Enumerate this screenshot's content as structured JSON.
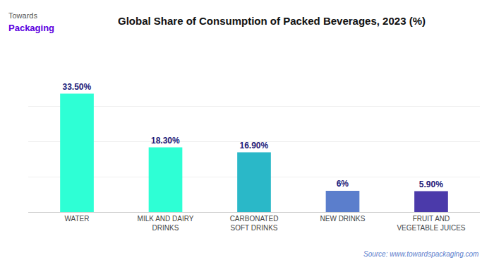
{
  "chart_data": {
    "type": "bar",
    "title": "Global Share of Consumption of Packed Beverages, 2023 (%)",
    "categories": [
      "WATER",
      "MILK AND DAIRY\nDRINKS",
      "CARBONATED\nSOFT DRINKS",
      "NEW DRINKS",
      "FRUIT AND\nVEGETABLE JUICES"
    ],
    "values": [
      33.5,
      18.3,
      16.9,
      6.0,
      5.9
    ],
    "value_labels": [
      "33.50%",
      "18.30%",
      "16.90%",
      "6%",
      "5.90%"
    ],
    "data_labels": true,
    "colors": [
      "#2EFFD5",
      "#2EFFD5",
      "#2AB8C8",
      "#5B7ECC",
      "#4B3AAA"
    ],
    "ylim": [
      0,
      40
    ],
    "yticks": [
      0,
      10,
      20,
      30,
      40
    ],
    "grid": true,
    "tick_labels": "x",
    "annotations": [
      "Towards",
      "Packaging",
      "Source: www.towardspackaging.com"
    ]
  }
}
